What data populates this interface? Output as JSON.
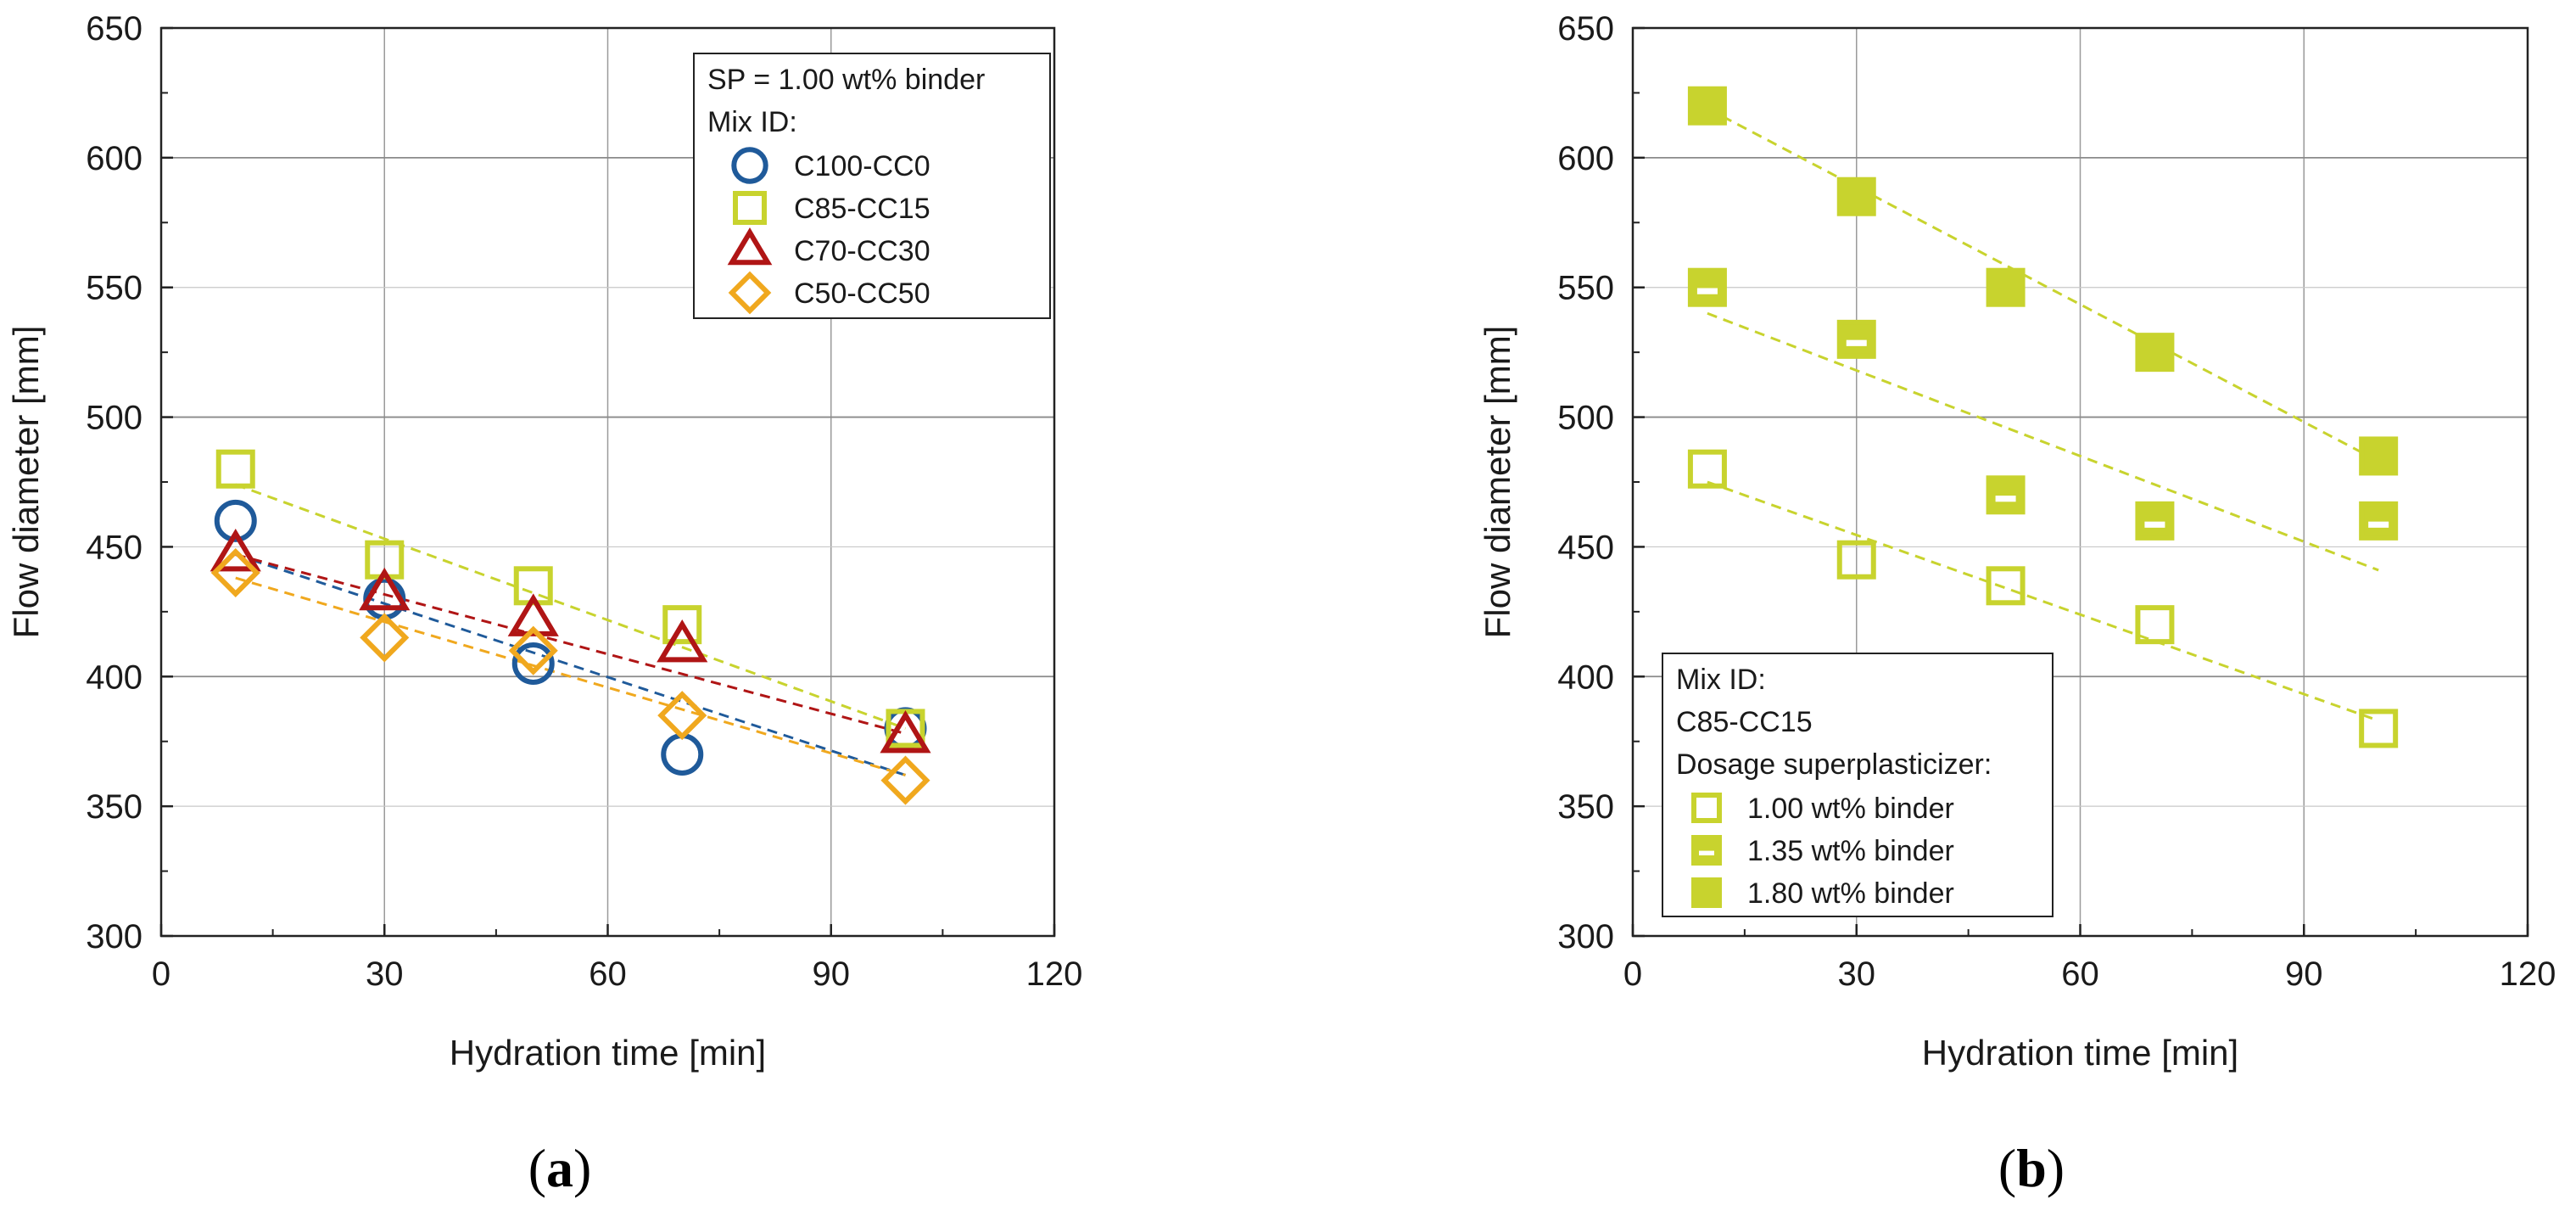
{
  "chart_data": [
    {
      "type": "scatter",
      "panel_label": "a",
      "xlabel": "Hydration time [min]",
      "ylabel": "Flow diameter [mm]",
      "xlim": [
        0,
        120
      ],
      "ylim": [
        300,
        650
      ],
      "xticks": [
        0,
        30,
        60,
        90,
        120
      ],
      "yticks": [
        300,
        350,
        400,
        450,
        500,
        550,
        600,
        650
      ],
      "grid": true,
      "legend": {
        "placement": "top-right",
        "header": "SP = 1.00 wt% binder",
        "subheader": "Mix ID:"
      },
      "series": [
        {
          "name": "C100-CC0",
          "marker": "circle",
          "color": "#1f5a9a",
          "x": [
            10,
            30,
            50,
            70,
            100
          ],
          "y": [
            460,
            430,
            405,
            370,
            380
          ],
          "trend": [
            [
              10,
              447
            ],
            [
              100,
              362
            ]
          ]
        },
        {
          "name": "C85-CC15",
          "marker": "square-open",
          "color": "#c8d32e",
          "x": [
            10,
            30,
            50,
            70,
            100
          ],
          "y": [
            480,
            445,
            435,
            420,
            380
          ],
          "trend": [
            [
              10,
              474
            ],
            [
              100,
              380
            ]
          ]
        },
        {
          "name": "C70-CC30",
          "marker": "triangle",
          "color": "#b01515",
          "x": [
            10,
            30,
            50,
            70,
            100
          ],
          "y": [
            447,
            432,
            422,
            412,
            377
          ],
          "trend": [
            [
              10,
              447
            ],
            [
              100,
              378
            ]
          ]
        },
        {
          "name": "C50-CC50",
          "marker": "diamond",
          "color": "#f0a81e",
          "x": [
            10,
            30,
            50,
            70,
            100
          ],
          "y": [
            440,
            415,
            410,
            385,
            360
          ],
          "trend": [
            [
              10,
              438
            ],
            [
              100,
              362
            ]
          ]
        }
      ]
    },
    {
      "type": "scatter",
      "panel_label": "b",
      "xlabel": "Hydration time [min]",
      "ylabel": "Flow diameter [mm]",
      "xlim": [
        0,
        120
      ],
      "ylim": [
        300,
        650
      ],
      "xticks": [
        0,
        30,
        60,
        90,
        120
      ],
      "yticks": [
        300,
        350,
        400,
        450,
        500,
        550,
        600,
        650
      ],
      "grid": true,
      "legend": {
        "placement": "bottom-left",
        "header": "Mix ID:",
        "subheader": "C85-CC15",
        "subheader2": "Dosage superplasticizer:"
      },
      "series": [
        {
          "name": "1.00 wt% binder",
          "marker": "square-open",
          "color": "#c8d32e",
          "x": [
            10,
            30,
            50,
            70,
            100
          ],
          "y": [
            480,
            445,
            435,
            420,
            380
          ],
          "trend": [
            [
              10,
              475
            ],
            [
              100,
              383
            ]
          ]
        },
        {
          "name": "1.35 wt% binder",
          "marker": "square-half",
          "color": "#c8d32e",
          "x": [
            10,
            30,
            50,
            70,
            100
          ],
          "y": [
            550,
            530,
            470,
            460,
            460
          ],
          "trend": [
            [
              10,
              540
            ],
            [
              100,
              441
            ]
          ]
        },
        {
          "name": "1.80 wt% binder",
          "marker": "square-filled",
          "color": "#c8d32e",
          "x": [
            10,
            30,
            50,
            70,
            100
          ],
          "y": [
            620,
            585,
            550,
            525,
            485
          ],
          "trend": [
            [
              10,
              619
            ],
            [
              100,
              483
            ]
          ]
        }
      ]
    }
  ]
}
